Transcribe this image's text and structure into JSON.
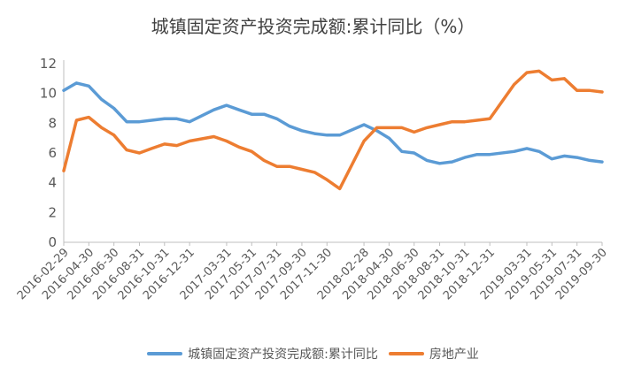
{
  "chart_data": {
    "type": "line",
    "title": "城镇固定资产投资完成额:累计同比（%）",
    "ylim": [
      0,
      12
    ],
    "yticks": [
      0,
      2,
      4,
      6,
      8,
      10,
      12
    ],
    "grid": false,
    "legend_position": "bottom",
    "x_tick_labels": [
      "2016-02-29",
      "2016-04-30",
      "2016-06-30",
      "2016-08-31",
      "2016-10-31",
      "2016-12-31",
      "2017-03-31",
      "2017-05-31",
      "2017-07-31",
      "2017-09-30",
      "2017-11-30",
      "2018-02-28",
      "2018-04-30",
      "2018-06-30",
      "2018-08-31",
      "2018-10-31",
      "2018-12-31",
      "2019-03-31",
      "2019-05-31",
      "2019-07-31",
      "2019-09-30"
    ],
    "x": [
      "2016-02-29",
      "2016-03-31",
      "2016-04-30",
      "2016-05-31",
      "2016-06-30",
      "2016-07-31",
      "2016-08-31",
      "2016-09-30",
      "2016-10-31",
      "2016-11-30",
      "2016-12-31",
      "2017-02-28",
      "2017-03-31",
      "2017-04-30",
      "2017-05-31",
      "2017-06-30",
      "2017-07-31",
      "2017-08-31",
      "2017-09-30",
      "2017-10-31",
      "2017-11-30",
      "2017-12-31",
      "2018-02-28",
      "2018-03-31",
      "2018-04-30",
      "2018-05-31",
      "2018-06-30",
      "2018-07-31",
      "2018-08-31",
      "2018-09-30",
      "2018-10-31",
      "2018-11-30",
      "2018-12-31",
      "2019-02-28",
      "2019-03-31",
      "2019-04-30",
      "2019-05-31",
      "2019-06-30",
      "2019-07-31",
      "2019-08-31",
      "2019-09-30"
    ],
    "series": [
      {
        "name": "城镇固定资产投资完成额:累计同比",
        "color": "#5B9BD5",
        "values": [
          10.2,
          10.7,
          10.5,
          9.6,
          9.0,
          8.1,
          8.1,
          8.2,
          8.3,
          8.3,
          8.1,
          8.9,
          9.2,
          8.9,
          8.6,
          8.6,
          8.3,
          7.8,
          7.5,
          7.3,
          7.2,
          7.2,
          7.9,
          7.5,
          7.0,
          6.1,
          6.0,
          5.5,
          5.3,
          5.4,
          5.7,
          5.9,
          5.9,
          6.1,
          6.3,
          6.1,
          5.6,
          5.8,
          5.7,
          5.5,
          5.4
        ]
      },
      {
        "name": "房地产业",
        "color": "#ED7D31",
        "values": [
          4.8,
          8.2,
          8.4,
          7.7,
          7.2,
          6.2,
          6.0,
          6.3,
          6.6,
          6.5,
          6.8,
          7.1,
          6.8,
          6.4,
          6.1,
          5.5,
          5.1,
          5.1,
          4.9,
          4.7,
          4.2,
          3.6,
          6.8,
          7.7,
          7.7,
          7.7,
          7.4,
          7.7,
          7.9,
          8.1,
          8.1,
          8.2,
          8.3,
          10.6,
          11.4,
          11.5,
          10.9,
          11.0,
          10.2,
          10.2,
          10.1
        ]
      }
    ]
  }
}
